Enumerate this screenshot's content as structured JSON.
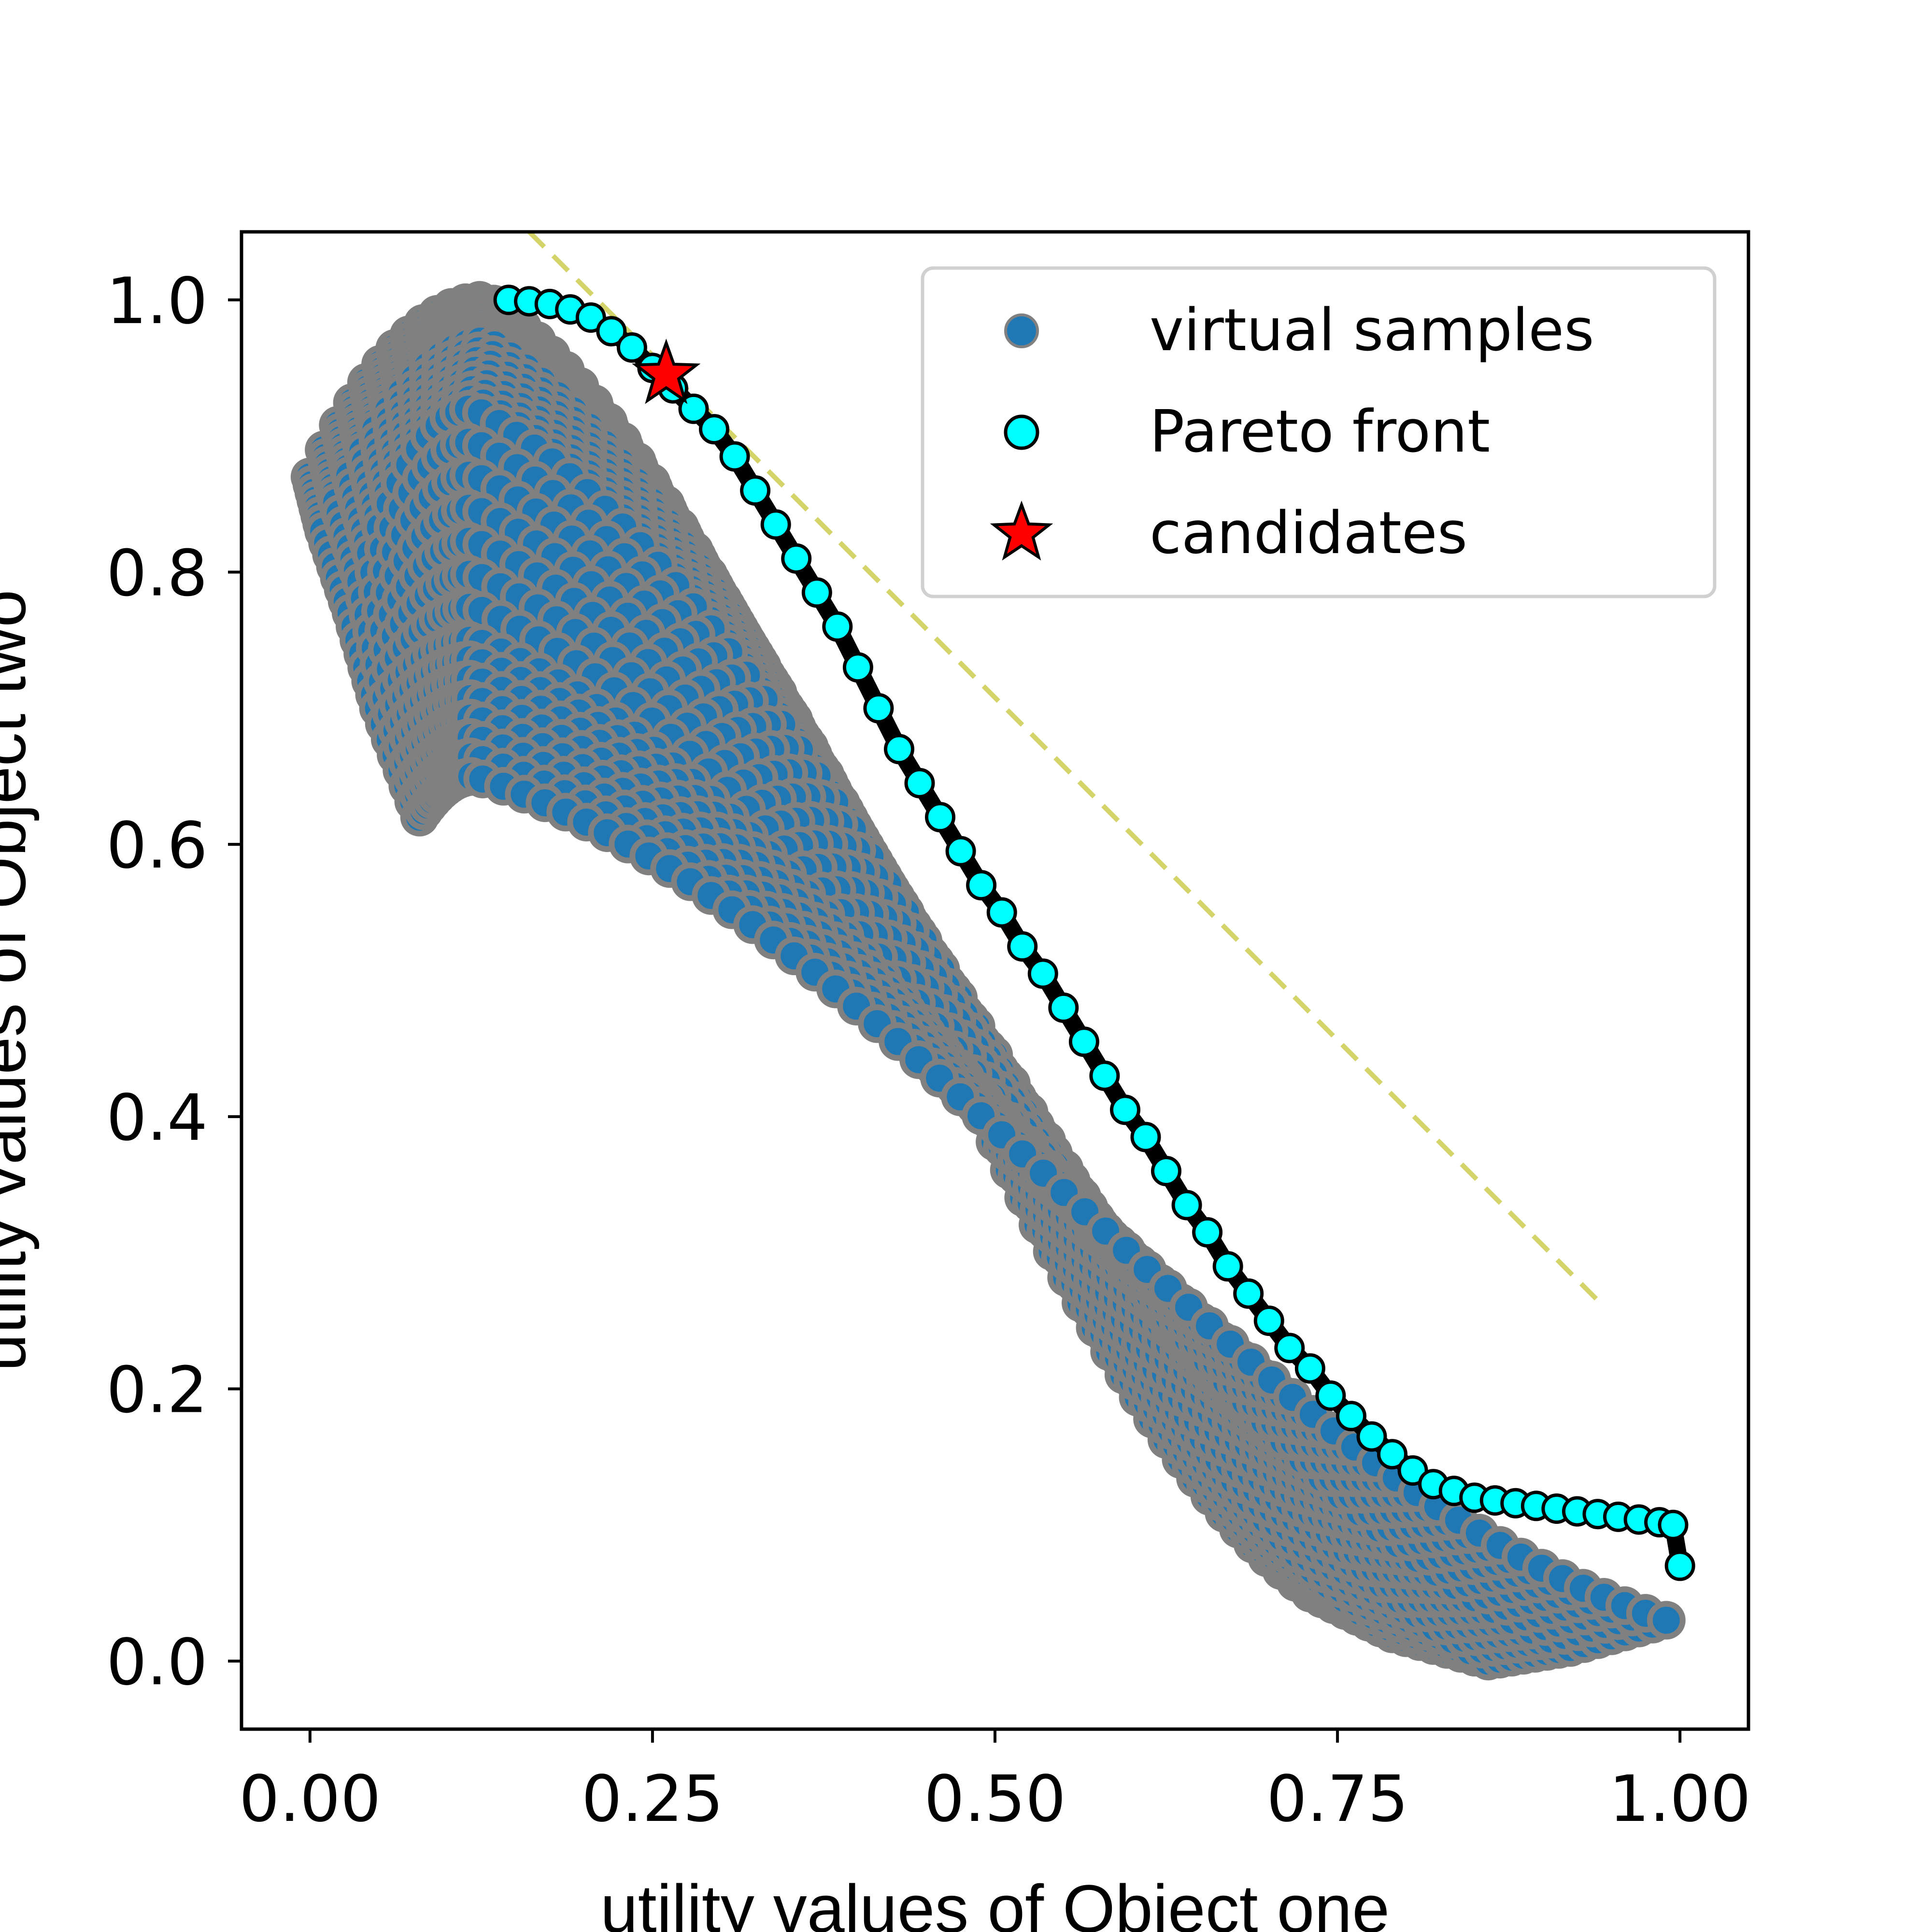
{
  "chart_data": {
    "type": "scatter",
    "xlabel": "utility values of Object one",
    "ylabel": "utility values of Object two",
    "xlim": [
      -0.05,
      1.05
    ],
    "ylim": [
      -0.05,
      1.05
    ],
    "xticks": [
      "0.00",
      "0.25",
      "0.50",
      "0.75",
      "1.00"
    ],
    "yticks": [
      "0.0",
      "0.2",
      "0.4",
      "0.6",
      "0.8",
      "1.0"
    ],
    "grid": false,
    "legend_position": "top-right",
    "legend": [
      "virtual samples",
      "Pareto front",
      "candidates"
    ],
    "colors": {
      "virtual_samples_fill": "#1f77b4",
      "virtual_samples_edge": "#808080",
      "pareto_fill": "#00ffff",
      "pareto_edge": "#000000",
      "candidate_fill": "#ff0000",
      "candidate_edge": "#000000",
      "reference_line": "#d4d46a"
    },
    "series": [
      {
        "name": "virtual samples",
        "marker": "circle",
        "note_points": "dense family of arcs",
        "arcs": [
          {
            "start": [
              0.0,
              0.87
            ],
            "peak": [
              0.13,
              1.0
            ],
            "end": [
              0.73,
              0.05
            ]
          },
          {
            "start": [
              0.01,
              0.83
            ],
            "peak": [
              0.13,
              0.97
            ],
            "end": [
              0.79,
              0.02
            ]
          },
          {
            "start": [
              0.03,
              0.77
            ],
            "peak": [
              0.12,
              0.92
            ],
            "end": [
              0.86,
              0.0
            ]
          },
          {
            "start": [
              0.05,
              0.7
            ],
            "peak": [
              0.12,
              0.75
            ],
            "end": [
              0.92,
              0.01
            ]
          },
          {
            "start": [
              0.08,
              0.62
            ],
            "peak": [
              0.12,
              0.65
            ],
            "end": [
              0.99,
              0.03
            ]
          }
        ]
      },
      {
        "name": "Pareto front",
        "marker": "circle",
        "points": [
          [
            0.145,
            1.0
          ],
          [
            0.16,
            0.999
          ],
          [
            0.175,
            0.997
          ],
          [
            0.19,
            0.993
          ],
          [
            0.205,
            0.987
          ],
          [
            0.22,
            0.977
          ],
          [
            0.235,
            0.965
          ],
          [
            0.25,
            0.95
          ],
          [
            0.265,
            0.935
          ],
          [
            0.28,
            0.92
          ],
          [
            0.295,
            0.905
          ],
          [
            0.31,
            0.885
          ],
          [
            0.325,
            0.86
          ],
          [
            0.34,
            0.835
          ],
          [
            0.355,
            0.81
          ],
          [
            0.37,
            0.785
          ],
          [
            0.385,
            0.76
          ],
          [
            0.4,
            0.73
          ],
          [
            0.415,
            0.7
          ],
          [
            0.43,
            0.67
          ],
          [
            0.445,
            0.645
          ],
          [
            0.46,
            0.62
          ],
          [
            0.475,
            0.595
          ],
          [
            0.49,
            0.57
          ],
          [
            0.505,
            0.55
          ],
          [
            0.52,
            0.525
          ],
          [
            0.535,
            0.505
          ],
          [
            0.55,
            0.48
          ],
          [
            0.565,
            0.455
          ],
          [
            0.58,
            0.43
          ],
          [
            0.595,
            0.405
          ],
          [
            0.61,
            0.385
          ],
          [
            0.625,
            0.36
          ],
          [
            0.64,
            0.335
          ],
          [
            0.655,
            0.315
          ],
          [
            0.67,
            0.29
          ],
          [
            0.685,
            0.27
          ],
          [
            0.7,
            0.25
          ],
          [
            0.715,
            0.23
          ],
          [
            0.73,
            0.215
          ],
          [
            0.745,
            0.195
          ],
          [
            0.76,
            0.18
          ],
          [
            0.775,
            0.165
          ],
          [
            0.79,
            0.152
          ],
          [
            0.805,
            0.14
          ],
          [
            0.82,
            0.13
          ],
          [
            0.835,
            0.125
          ],
          [
            0.85,
            0.12
          ],
          [
            0.865,
            0.118
          ],
          [
            0.88,
            0.116
          ],
          [
            0.895,
            0.114
          ],
          [
            0.91,
            0.112
          ],
          [
            0.925,
            0.11
          ],
          [
            0.94,
            0.108
          ],
          [
            0.955,
            0.106
          ],
          [
            0.97,
            0.104
          ],
          [
            0.985,
            0.102
          ],
          [
            0.995,
            0.1
          ],
          [
            1.0,
            0.07
          ]
        ]
      },
      {
        "name": "candidates",
        "marker": "star",
        "points": [
          [
            0.26,
            0.945
          ]
        ]
      },
      {
        "name": "reference",
        "style": "dashed",
        "points": [
          [
            0.16,
            1.05
          ],
          [
            0.94,
            0.265
          ]
        ]
      }
    ]
  }
}
